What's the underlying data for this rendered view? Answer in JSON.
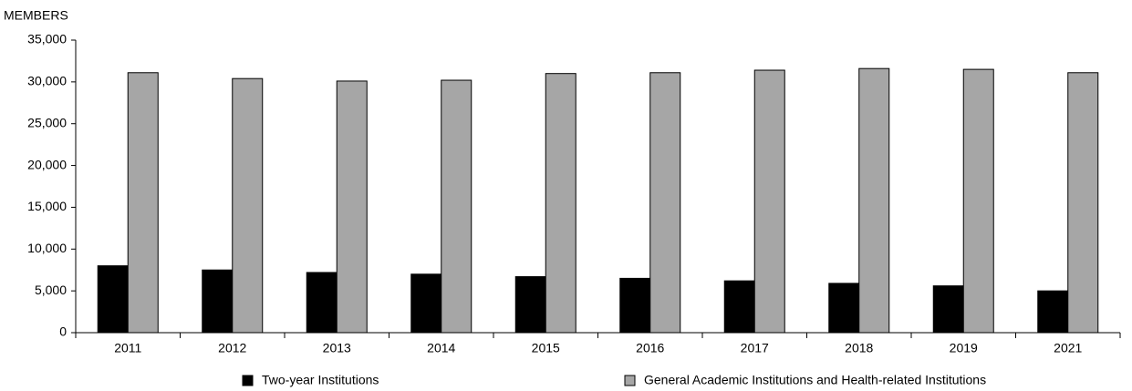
{
  "chart_data": {
    "type": "bar",
    "ylabel": "MEMBERS",
    "categories": [
      "2011",
      "2012",
      "2013",
      "2014",
      "2015",
      "2016",
      "2017",
      "2018",
      "2019",
      "2021"
    ],
    "series": [
      {
        "name": "Two-year Institutions",
        "color": "#000000",
        "values": [
          8000,
          7500,
          7200,
          7000,
          6700,
          6500,
          6200,
          5900,
          5600,
          5000
        ]
      },
      {
        "name": "General Academic Institutions and Health-related Institutions",
        "color": "#a6a6a6",
        "values": [
          31100,
          30400,
          30100,
          30200,
          31000,
          31100,
          31400,
          31600,
          31500,
          31100
        ]
      }
    ],
    "ylim": [
      0,
      35000
    ],
    "yticks": [
      0,
      {
        "value": 5000,
        "label": "5,000"
      },
      {
        "value": 10000,
        "label": "10,000"
      },
      {
        "value": 15000,
        "label": "15,000"
      },
      {
        "value": 20000,
        "label": "20,000"
      },
      {
        "value": 25000,
        "label": "25,000"
      },
      {
        "value": 30000,
        "label": "30,000"
      },
      {
        "value": 35000,
        "label": "35,000"
      }
    ],
    "grid": false,
    "legend": "bottom"
  }
}
